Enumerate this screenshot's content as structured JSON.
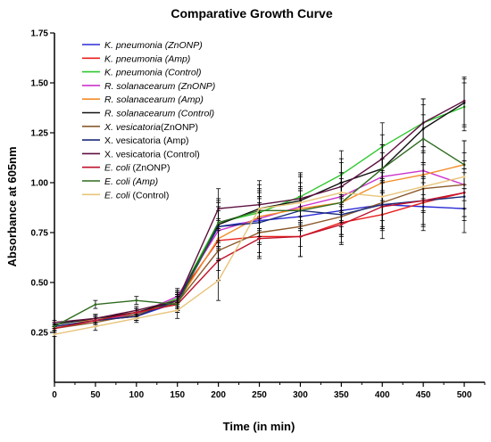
{
  "chart_data": {
    "type": "line",
    "title": "Comparative Growth Curve",
    "xlabel": "Time (in min)",
    "ylabel": "Absorbance at 605nm",
    "x": [
      0,
      50,
      100,
      150,
      200,
      250,
      300,
      350,
      400,
      450,
      500
    ],
    "xlim": [
      0,
      525
    ],
    "ylim": [
      0,
      1.75
    ],
    "xticks": [
      0,
      50,
      100,
      150,
      200,
      250,
      300,
      350,
      400,
      450,
      500
    ],
    "yticks": [
      0.25,
      0.5,
      0.75,
      1.0,
      1.25,
      1.5,
      1.75
    ],
    "ytick_labels": [
      "0.25",
      "0.50",
      "0.75",
      "1.00",
      "1.25",
      "1.50",
      "1.75"
    ],
    "grid": false,
    "legend_position": "top-left",
    "error_bars": true,
    "series": [
      {
        "name_parts": [
          {
            "text": "K. pneumonia",
            "italic": true
          },
          {
            "text": " (ZnONP)",
            "italic": true
          }
        ],
        "color": "#2b2bd6",
        "values": [
          0.28,
          0.31,
          0.33,
          0.4,
          0.78,
          0.81,
          0.83,
          0.86,
          0.89,
          0.88,
          0.87
        ],
        "err": [
          0.01,
          0.02,
          0.02,
          0.04,
          0.1,
          0.12,
          0.1,
          0.12,
          0.12,
          0.12,
          0.12
        ]
      },
      {
        "name_parts": [
          {
            "text": "K. pneumonia",
            "italic": true
          },
          {
            "text": " (Amp)",
            "italic": true
          }
        ],
        "color": "#e8201e",
        "values": [
          0.27,
          0.31,
          0.33,
          0.42,
          0.71,
          0.73,
          0.73,
          0.8,
          0.84,
          0.9,
          0.95
        ],
        "err": [
          0.01,
          0.02,
          0.02,
          0.04,
          0.1,
          0.1,
          0.1,
          0.1,
          0.12,
          0.12,
          0.12
        ]
      },
      {
        "name_parts": [
          {
            "text": "K. pneumonia",
            "italic": true
          },
          {
            "text": " (Control)",
            "italic": true
          }
        ],
        "color": "#2ec72e",
        "values": [
          0.29,
          0.32,
          0.34,
          0.42,
          0.8,
          0.85,
          0.93,
          1.04,
          1.18,
          1.3,
          1.38
        ],
        "err": [
          0.01,
          0.02,
          0.02,
          0.04,
          0.12,
          0.1,
          0.12,
          0.12,
          0.12,
          0.12,
          0.12
        ]
      },
      {
        "name_parts": [
          {
            "text": "R. solanacearum",
            "italic": true
          },
          {
            "text": " (ZnONP)",
            "italic": true
          }
        ],
        "color": "#cc33cc",
        "values": [
          0.28,
          0.31,
          0.34,
          0.43,
          0.76,
          0.82,
          0.88,
          0.93,
          1.03,
          1.06,
          0.99
        ],
        "err": [
          0.01,
          0.02,
          0.02,
          0.04,
          0.1,
          0.1,
          0.1,
          0.12,
          0.12,
          0.12,
          0.12
        ]
      },
      {
        "name_parts": [
          {
            "text": "R. solanacearum",
            "italic": true
          },
          {
            "text": " (Amp)",
            "italic": true
          }
        ],
        "color": "#f28c28",
        "values": [
          0.27,
          0.32,
          0.35,
          0.4,
          0.72,
          0.83,
          0.87,
          0.9,
          1.0,
          1.04,
          1.09
        ],
        "err": [
          0.01,
          0.02,
          0.02,
          0.04,
          0.1,
          0.1,
          0.1,
          0.12,
          0.12,
          0.12,
          0.12
        ]
      },
      {
        "name_parts": [
          {
            "text": "R. solanacearum",
            "italic": true
          },
          {
            "text": " (Control)",
            "italic": true
          }
        ],
        "color": "#111111",
        "values": [
          0.29,
          0.32,
          0.35,
          0.41,
          0.79,
          0.87,
          0.91,
          1.0,
          1.07,
          1.27,
          1.4
        ],
        "err": [
          0.01,
          0.02,
          0.02,
          0.04,
          0.12,
          0.12,
          0.12,
          0.12,
          0.12,
          0.12,
          0.12
        ]
      },
      {
        "name_parts": [
          {
            "text": "X. vesicatoria",
            "italic": true
          },
          {
            "text": "(ZnONP)",
            "italic": false
          }
        ],
        "color": "#8b5a2b",
        "values": [
          0.27,
          0.3,
          0.34,
          0.4,
          0.66,
          0.75,
          0.78,
          0.83,
          0.9,
          0.97,
          0.99
        ],
        "err": [
          0.01,
          0.02,
          0.02,
          0.04,
          0.1,
          0.1,
          0.1,
          0.1,
          0.12,
          0.12,
          0.12
        ]
      },
      {
        "name_parts": [
          {
            "text": "X. vesicatoria",
            "italic": false
          },
          {
            "text": " (Amp)",
            "italic": false
          }
        ],
        "color": "#1c2c78",
        "values": [
          0.28,
          0.31,
          0.33,
          0.41,
          0.78,
          0.8,
          0.86,
          0.84,
          0.89,
          0.91,
          0.93
        ],
        "err": [
          0.01,
          0.02,
          0.02,
          0.04,
          0.1,
          0.1,
          0.1,
          0.1,
          0.12,
          0.12,
          0.12
        ]
      },
      {
        "name_parts": [
          {
            "text": "X. vesicatoria",
            "italic": false
          },
          {
            "text": " (Control)",
            "italic": false
          }
        ],
        "color": "#5e1040",
        "values": [
          0.3,
          0.32,
          0.36,
          0.41,
          0.87,
          0.89,
          0.92,
          0.98,
          1.12,
          1.3,
          1.41
        ],
        "err": [
          0.01,
          0.02,
          0.02,
          0.04,
          0.1,
          0.12,
          0.12,
          0.12,
          0.12,
          0.12,
          0.12
        ]
      },
      {
        "name_parts": [
          {
            "text": "E. coli",
            "italic": true
          },
          {
            "text": " (ZnONP)",
            "italic": false
          }
        ],
        "color": "#c0122b",
        "values": [
          0.27,
          0.31,
          0.35,
          0.39,
          0.61,
          0.72,
          0.73,
          0.79,
          0.88,
          0.91,
          0.95
        ],
        "err": [
          0.01,
          0.02,
          0.02,
          0.04,
          0.1,
          0.1,
          0.1,
          0.1,
          0.12,
          0.12,
          0.12
        ]
      },
      {
        "name_parts": [
          {
            "text": "E. coli",
            "italic": true
          },
          {
            "text": " (Amp)",
            "italic": true
          }
        ],
        "color": "#2e6b1f",
        "values": [
          0.28,
          0.39,
          0.41,
          0.39,
          0.8,
          0.86,
          0.86,
          0.9,
          1.07,
          1.22,
          1.09
        ],
        "err": [
          0.01,
          0.02,
          0.02,
          0.04,
          0.1,
          0.1,
          0.1,
          0.1,
          0.12,
          0.12,
          0.12
        ]
      },
      {
        "name_parts": [
          {
            "text": "E. coli",
            "italic": true
          },
          {
            "text": " (Control)",
            "italic": false
          }
        ],
        "color": "#e8c47a",
        "values": [
          0.24,
          0.28,
          0.32,
          0.36,
          0.51,
          0.87,
          0.9,
          0.95,
          0.93,
          0.98,
          1.03
        ],
        "err": [
          0.01,
          0.02,
          0.02,
          0.04,
          0.1,
          0.1,
          0.1,
          0.1,
          0.12,
          0.12,
          0.12
        ]
      }
    ]
  }
}
